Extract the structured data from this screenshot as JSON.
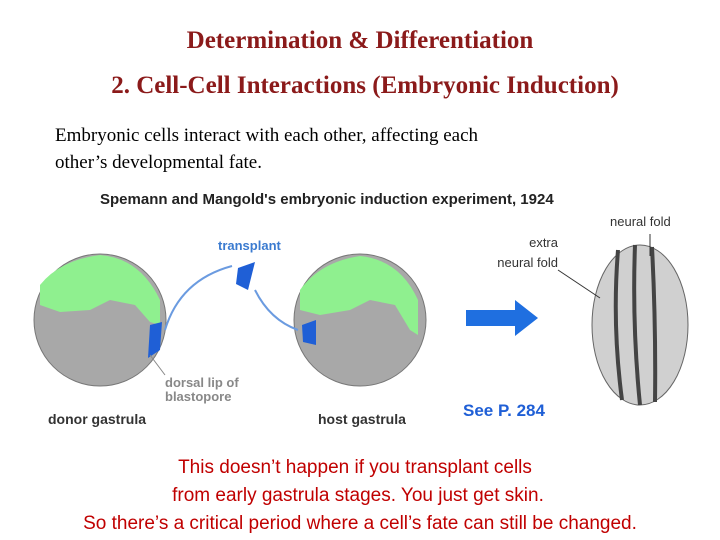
{
  "header": {
    "title": "Determination & Differentiation",
    "subtitle": "2. Cell-Cell Interactions (Embryonic Induction)"
  },
  "intro": [
    "Embryonic cells interact with each other, affecting each",
    "other’s developmental fate."
  ],
  "figure": {
    "title": "Spemann and Mangold's embryonic induction experiment, 1924",
    "labels": {
      "transplant": "transplant",
      "donor": "donor gastrula",
      "host": "host gastrula",
      "dorsal_lip": [
        "dorsal lip of",
        "blastopore"
      ],
      "extra_fold": [
        "extra",
        "neural fold"
      ],
      "neural_fold": "neural fold"
    }
  },
  "reference": "See P. 284",
  "conclusion": [
    "This doesn’t happen if you transplant cells",
    "from early gastrula stages. You just get skin.",
    "So there’s a critical period where a cell’s fate can still be changed."
  ]
}
